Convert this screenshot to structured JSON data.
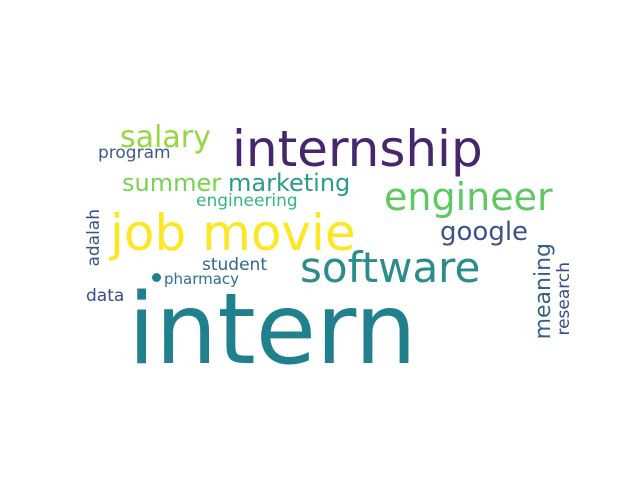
{
  "word_cloud": {
    "words": [
      {
        "text": "intern",
        "color": "#21808d",
        "orientation": "horizontal"
      },
      {
        "text": "internship",
        "color": "#46276e",
        "orientation": "horizontal"
      },
      {
        "text": "job movie",
        "color": "#fde725",
        "orientation": "horizontal"
      },
      {
        "text": "software",
        "color": "#2a8c8b",
        "orientation": "horizontal"
      },
      {
        "text": "engineer",
        "color": "#5ec962",
        "orientation": "horizontal"
      },
      {
        "text": "salary",
        "color": "#95d840",
        "orientation": "horizontal"
      },
      {
        "text": "summer",
        "color": "#7ad151",
        "orientation": "horizontal"
      },
      {
        "text": "marketing",
        "color": "#2a9c8a",
        "orientation": "horizontal"
      },
      {
        "text": "google",
        "color": "#3b528b",
        "orientation": "horizontal"
      },
      {
        "text": "engineering",
        "color": "#35b779",
        "orientation": "horizontal"
      },
      {
        "text": "program",
        "color": "#3e5a8c",
        "orientation": "horizontal"
      },
      {
        "text": "student",
        "color": "#31688e",
        "orientation": "horizontal"
      },
      {
        "text": "pharmacy",
        "color": "#2c718e",
        "orientation": "horizontal"
      },
      {
        "text": "data",
        "color": "#3f4a8a",
        "orientation": "horizontal"
      },
      {
        "text": "adalah",
        "color": "#3b528b",
        "orientation": "vertical"
      },
      {
        "text": "meaning",
        "color": "#33638d",
        "orientation": "vertical"
      },
      {
        "text": "research",
        "color": "#3e4989",
        "orientation": "vertical"
      }
    ],
    "bullet_color": "#21808d"
  }
}
